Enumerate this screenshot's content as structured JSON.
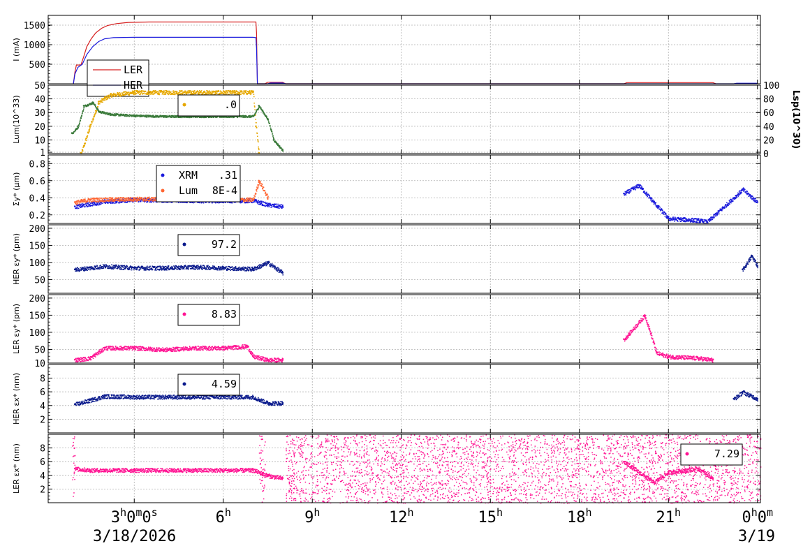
{
  "chart_data": {
    "type": "scatter",
    "x_axis": {
      "unit": "hours",
      "range": [
        0.1,
        24.1
      ],
      "ticks": [
        {
          "pos": 3,
          "label": "3",
          "sup": "h",
          "label2": "0",
          "sup2": "m",
          "label3": "0",
          "sup3": "s"
        },
        {
          "pos": 6,
          "label": "6",
          "sup": "h"
        },
        {
          "pos": 9,
          "label": "9",
          "sup": "h"
        },
        {
          "pos": 12,
          "label": "12",
          "sup": "h"
        },
        {
          "pos": 15,
          "label": "15",
          "sup": "h"
        },
        {
          "pos": 18,
          "label": "18",
          "sup": "h"
        },
        {
          "pos": 21,
          "label": "21",
          "sup": "h"
        },
        {
          "pos": 24,
          "label": "0",
          "sup": "h",
          "label2": "0",
          "sup2": "m"
        }
      ],
      "date_start": "3/18/2026",
      "date_end": "3/19"
    },
    "panels": [
      {
        "id": "current",
        "ylabel": "I (mA)",
        "ylim": [
          0,
          1750
        ],
        "yticks": [
          500,
          1000,
          1500
        ],
        "series": [
          {
            "name": "LER",
            "color": "#d62020",
            "style": "line",
            "points": [
              [
                0.95,
                0
              ],
              [
                1.0,
                300
              ],
              [
                1.05,
                480
              ],
              [
                1.2,
                480
              ],
              [
                1.3,
                700
              ],
              [
                1.4,
                950
              ],
              [
                1.55,
                1150
              ],
              [
                1.7,
                1300
              ],
              [
                1.9,
                1420
              ],
              [
                2.1,
                1490
              ],
              [
                2.4,
                1540
              ],
              [
                2.8,
                1570
              ],
              [
                3.5,
                1580
              ],
              [
                4.5,
                1580
              ],
              [
                5.5,
                1580
              ],
              [
                6.5,
                1580
              ],
              [
                7.1,
                1580
              ],
              [
                7.12,
                1300
              ],
              [
                7.15,
                0
              ],
              [
                7.4,
                0
              ],
              [
                7.5,
                40
              ],
              [
                8.0,
                40
              ],
              [
                8.1,
                0
              ],
              [
                19.5,
                0
              ],
              [
                19.6,
                30
              ],
              [
                22.5,
                30
              ],
              [
                22.6,
                0
              ]
            ]
          },
          {
            "name": "HER",
            "color": "#1a1adc",
            "style": "line",
            "points": [
              [
                0.95,
                0
              ],
              [
                1.0,
                250
              ],
              [
                1.1,
                420
              ],
              [
                1.25,
                500
              ],
              [
                1.4,
                750
              ],
              [
                1.6,
                950
              ],
              [
                1.8,
                1080
              ],
              [
                2.0,
                1150
              ],
              [
                2.3,
                1180
              ],
              [
                3.0,
                1190
              ],
              [
                5.0,
                1190
              ],
              [
                7.0,
                1190
              ],
              [
                7.1,
                1180
              ],
              [
                7.12,
                900
              ],
              [
                7.15,
                0
              ],
              [
                7.5,
                0
              ],
              [
                7.6,
                20
              ],
              [
                8.0,
                20
              ],
              [
                8.1,
                0
              ],
              [
                23.2,
                0
              ],
              [
                23.3,
                15
              ],
              [
                24.0,
                15
              ]
            ]
          }
        ],
        "legend": [
          {
            "name": "LER",
            "color": "#d62020"
          },
          {
            "name": "HER",
            "color": "#1a1adc"
          }
        ]
      },
      {
        "id": "lum",
        "ylabel": "Lum(10^33)",
        "ylim": [
          0,
          50
        ],
        "yticks": [
          1,
          10,
          20,
          30,
          40,
          50
        ],
        "y2label": "Lsp(10^30)",
        "y2lim": [
          0,
          100
        ],
        "y2ticks": [
          0,
          20,
          40,
          60,
          80,
          100
        ],
        "series": [
          {
            "name": "Lum",
            "color": "#e6a800",
            "points": [
              [
                1.2,
                0
              ],
              [
                1.5,
                20
              ],
              [
                1.8,
                38
              ],
              [
                2.2,
                43
              ],
              [
                3.0,
                45
              ],
              [
                5.0,
                45
              ],
              [
                7.0,
                45
              ],
              [
                7.1,
                20
              ],
              [
                7.2,
                0
              ]
            ]
          },
          {
            "name": "Lsp",
            "color": "#3a7a3a",
            "axis": "y2",
            "points": [
              [
                0.9,
                30
              ],
              [
                1.1,
                40
              ],
              [
                1.3,
                70
              ],
              [
                1.6,
                75
              ],
              [
                1.8,
                62
              ],
              [
                2.2,
                58
              ],
              [
                3.0,
                56
              ],
              [
                4.0,
                55
              ],
              [
                5.0,
                55
              ],
              [
                6.0,
                55
              ],
              [
                7.0,
                55
              ],
              [
                7.2,
                70
              ],
              [
                7.5,
                50
              ],
              [
                7.7,
                20
              ],
              [
                8.0,
                5
              ]
            ]
          }
        ],
        "legend": [
          {
            "name": "",
            "value": ".0",
            "color": "#e6a800"
          }
        ]
      },
      {
        "id": "sigma",
        "ylabel": "Σy* (μm)",
        "ylim": [
          0.1,
          0.9
        ],
        "yticks": [
          0.2,
          0.4,
          0.6,
          0.8
        ],
        "series": [
          {
            "name": "XRM",
            "color": "#1a1adc",
            "points": [
              [
                1.0,
                0.3
              ],
              [
                2.0,
                0.36
              ],
              [
                3.0,
                0.38
              ],
              [
                5.0,
                0.37
              ],
              [
                7.0,
                0.37
              ],
              [
                7.5,
                0.32
              ],
              [
                8.0,
                0.3
              ],
              [
                19.5,
                0.45
              ],
              [
                20.0,
                0.55
              ],
              [
                20.5,
                0.35
              ],
              [
                21.0,
                0.16
              ],
              [
                22.0,
                0.14
              ],
              [
                22.3,
                0.12
              ],
              [
                23.5,
                0.5
              ],
              [
                24.0,
                0.35
              ]
            ]
          },
          {
            "name": "Lum",
            "color": "#ff6633",
            "points": [
              [
                1.0,
                0.35
              ],
              [
                1.5,
                0.38
              ],
              [
                3.0,
                0.39
              ],
              [
                5.0,
                0.39
              ],
              [
                7.0,
                0.38
              ],
              [
                7.2,
                0.6
              ],
              [
                7.5,
                0.4
              ]
            ]
          }
        ],
        "legend": [
          {
            "name": "XRM",
            "value": ".31",
            "color": "#1a1adc"
          },
          {
            "name": "Lum",
            "value": "8E-4",
            "color": "#ff6633"
          }
        ]
      },
      {
        "id": "her_ey",
        "ylabel": "HER εy* (pm)",
        "ylim": [
          10,
          210
        ],
        "yticks": [
          50,
          100,
          150,
          200
        ],
        "series": [
          {
            "name": "HER ey",
            "color": "#0a1a8c",
            "points": [
              [
                1.0,
                80
              ],
              [
                2.0,
                90
              ],
              [
                3.0,
                85
              ],
              [
                4.0,
                85
              ],
              [
                5.0,
                88
              ],
              [
                6.0,
                85
              ],
              [
                7.0,
                82
              ],
              [
                7.5,
                100
              ],
              [
                8.0,
                70
              ],
              [
                23.5,
                80
              ],
              [
                23.8,
                120
              ],
              [
                24.0,
                90
              ]
            ]
          }
        ],
        "legend": [
          {
            "name": "",
            "value": "97.2",
            "color": "#0a1a8c"
          }
        ]
      },
      {
        "id": "ler_ey",
        "ylabel": "LER εy* (pm)",
        "ylim": [
          10,
          210
        ],
        "yticks": [
          10,
          50,
          100,
          150,
          200
        ],
        "series": [
          {
            "name": "LER ey",
            "color": "#ff1493",
            "points": [
              [
                1.0,
                20
              ],
              [
                1.5,
                25
              ],
              [
                2.0,
                55
              ],
              [
                3.0,
                55
              ],
              [
                4.0,
                50
              ],
              [
                5.0,
                55
              ],
              [
                6.0,
                55
              ],
              [
                6.8,
                60
              ],
              [
                7.0,
                30
              ],
              [
                7.5,
                20
              ],
              [
                8.0,
                20
              ],
              [
                19.5,
                80
              ],
              [
                20.2,
                150
              ],
              [
                20.6,
                40
              ],
              [
                21.0,
                30
              ],
              [
                22.0,
                25
              ],
              [
                22.5,
                20
              ]
            ]
          }
        ],
        "legend": [
          {
            "name": "",
            "value": "8.83",
            "color": "#ff1493"
          }
        ]
      },
      {
        "id": "her_ex",
        "ylabel": "HER εx* (nm)",
        "ylim": [
          0,
          10
        ],
        "yticks": [
          2,
          4,
          6,
          8
        ],
        "series": [
          {
            "name": "HER ex",
            "color": "#0a1a8c",
            "points": [
              [
                1.0,
                4.2
              ],
              [
                1.5,
                4.8
              ],
              [
                2.0,
                5.4
              ],
              [
                3.0,
                5.3
              ],
              [
                5.0,
                5.3
              ],
              [
                7.0,
                5.3
              ],
              [
                7.2,
                4.9
              ],
              [
                7.5,
                4.4
              ],
              [
                8.0,
                4.4
              ],
              [
                23.2,
                5.0
              ],
              [
                23.5,
                6.0
              ],
              [
                24.0,
                5.0
              ]
            ]
          }
        ],
        "legend": [
          {
            "name": "",
            "value": "4.59",
            "color": "#0a1a8c"
          }
        ]
      },
      {
        "id": "ler_ex",
        "ylabel": "LER εx* (nm)",
        "ylim": [
          0,
          10
        ],
        "yticks": [
          2,
          4,
          6,
          8
        ],
        "series": [
          {
            "name": "LER ex",
            "color": "#ff1493",
            "points": [
              [
                1.0,
                5.0
              ],
              [
                1.5,
                4.8
              ],
              [
                2.0,
                4.8
              ],
              [
                3.0,
                4.8
              ],
              [
                5.0,
                4.8
              ],
              [
                7.0,
                4.8
              ],
              [
                7.5,
                4.0
              ],
              [
                8.0,
                3.6
              ],
              [
                19.5,
                6.0
              ],
              [
                20.5,
                3.0
              ],
              [
                21.0,
                4.5
              ],
              [
                22.0,
                5.0
              ],
              [
                22.5,
                3.6
              ]
            ]
          }
        ],
        "noise": {
          "color": "#ff1493",
          "ranges": [
            [
              0.9,
              1.0
            ],
            [
              7.2,
              7.4
            ],
            [
              8.1,
              19.4
            ],
            [
              19.4,
              24.1
            ]
          ]
        },
        "legend": [
          {
            "name": "",
            "value": "7.29",
            "color": "#ff1493"
          }
        ]
      }
    ]
  }
}
